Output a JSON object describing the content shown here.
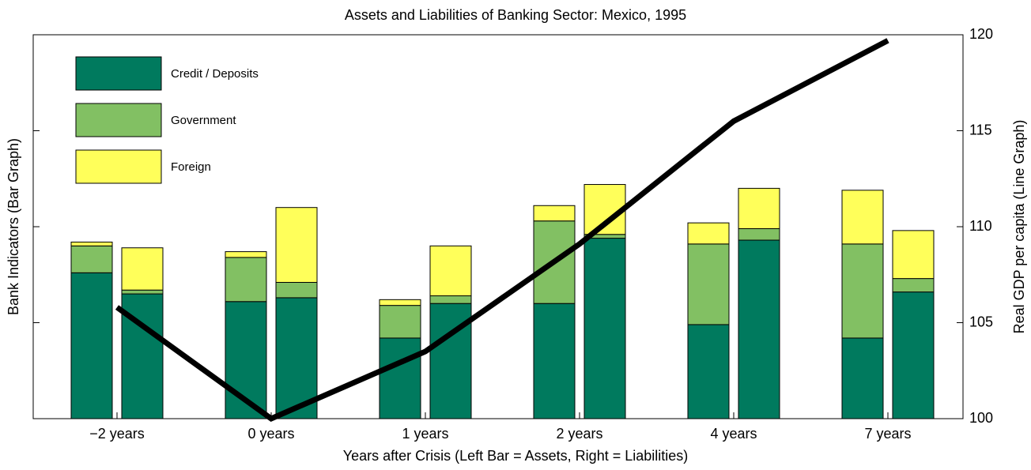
{
  "chart_data": {
    "type": "stacked-bar-line",
    "title": "Assets and Liabilities of Banking Sector: Mexico, 1995",
    "x_label": "Years after Crisis (Left Bar = Assets, Right = Liabilities)",
    "y_label": "Bank Indicators (Bar Graph)",
    "y2_label": "Real GDP per capita (Line Graph)",
    "categories": [
      "−2 years",
      "0 years",
      "1 years",
      "2 years",
      "4 years",
      "7 years"
    ],
    "ylim": [
      0,
      20
    ],
    "yticks": [
      5,
      10,
      15
    ],
    "y2lim": [
      100,
      120
    ],
    "y2ticks": [
      100,
      105,
      110,
      115,
      120
    ],
    "legend": "upper-left",
    "series": [
      {
        "name": "Credit / Deposits",
        "color": "#007a5e",
        "assets": [
          7.6,
          6.1,
          4.2,
          6.0,
          4.9,
          4.2
        ],
        "liabilities": [
          6.5,
          6.3,
          6.0,
          9.4,
          9.3,
          6.6
        ]
      },
      {
        "name": "Government",
        "color": "#82c063",
        "assets": [
          1.4,
          2.3,
          1.7,
          4.3,
          4.2,
          4.9
        ],
        "liabilities": [
          0.2,
          0.8,
          0.4,
          0.2,
          0.6,
          0.7
        ]
      },
      {
        "name": "Foreign",
        "color": "#ffff5a",
        "assets": [
          0.2,
          0.3,
          0.3,
          0.8,
          1.1,
          2.8
        ],
        "liabilities": [
          2.2,
          3.9,
          2.6,
          2.6,
          2.1,
          2.5
        ]
      }
    ],
    "line_series": {
      "axis": "y2",
      "color": "#000000",
      "values": [
        105.8,
        100,
        103.5,
        109.1,
        115.5,
        119.7
      ]
    }
  }
}
